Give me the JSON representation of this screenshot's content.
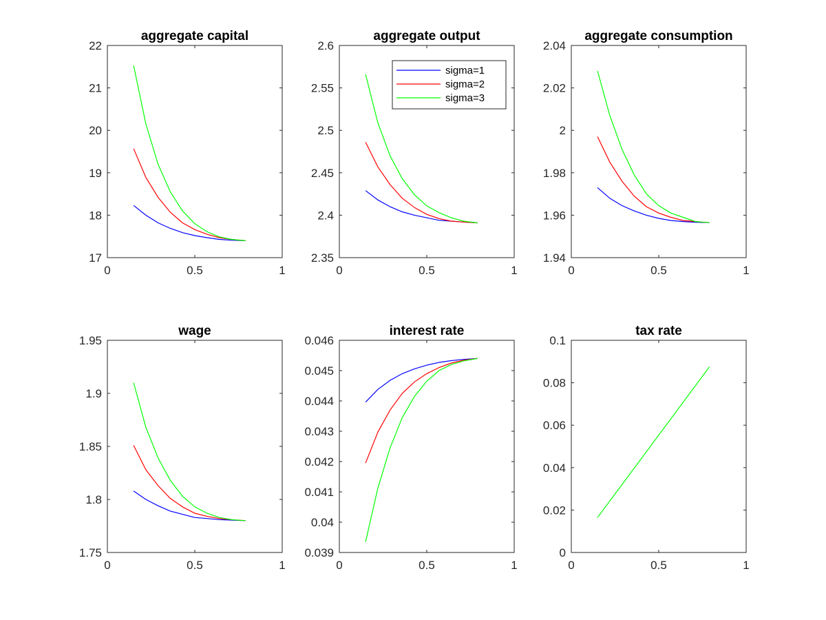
{
  "chart_data": [
    {
      "type": "line",
      "title": "aggregate capital",
      "xlim": [
        0,
        1
      ],
      "ylim": [
        17,
        22
      ],
      "xticks": [
        "0",
        "0.5",
        "1"
      ],
      "yticks": [
        "17",
        "18",
        "19",
        "20",
        "21",
        "22"
      ],
      "x": [
        0.15,
        0.22,
        0.29,
        0.36,
        0.43,
        0.5,
        0.57,
        0.64,
        0.71,
        0.79
      ],
      "series": [
        {
          "name": "sigma=1",
          "color": "#0000ff",
          "values": [
            18.23,
            18.0,
            17.82,
            17.69,
            17.59,
            17.52,
            17.47,
            17.43,
            17.41,
            17.4
          ]
        },
        {
          "name": "sigma=2",
          "color": "#ff0000",
          "values": [
            19.57,
            18.89,
            18.42,
            18.07,
            17.82,
            17.66,
            17.55,
            17.47,
            17.43,
            17.4
          ]
        },
        {
          "name": "sigma=3",
          "color": "#00ff00",
          "values": [
            21.53,
            20.15,
            19.2,
            18.55,
            18.1,
            17.8,
            17.61,
            17.49,
            17.43,
            17.4
          ]
        }
      ]
    },
    {
      "type": "line",
      "title": "aggregate output",
      "xlim": [
        0,
        1
      ],
      "ylim": [
        2.35,
        2.6
      ],
      "xticks": [
        "0",
        "0.5",
        "1"
      ],
      "yticks": [
        "2.35",
        "2.4",
        "2.45",
        "2.5",
        "2.55",
        "2.6"
      ],
      "x": [
        0.15,
        0.22,
        0.29,
        0.36,
        0.43,
        0.5,
        0.57,
        0.64,
        0.71,
        0.79
      ],
      "legend": {
        "position": "top-right",
        "entries": [
          "sigma=1",
          "sigma=2",
          "sigma=3"
        ]
      },
      "series": [
        {
          "name": "sigma=1",
          "color": "#0000ff",
          "values": [
            2.429,
            2.418,
            2.41,
            2.404,
            2.4,
            2.397,
            2.394,
            2.393,
            2.392,
            2.391
          ]
        },
        {
          "name": "sigma=2",
          "color": "#ff0000",
          "values": [
            2.486,
            2.457,
            2.436,
            2.42,
            2.409,
            2.401,
            2.396,
            2.393,
            2.392,
            2.391
          ]
        },
        {
          "name": "sigma=3",
          "color": "#00ff00",
          "values": [
            2.566,
            2.509,
            2.47,
            2.443,
            2.424,
            2.411,
            2.403,
            2.397,
            2.393,
            2.391
          ]
        }
      ]
    },
    {
      "type": "line",
      "title": "aggregate consumption",
      "xlim": [
        0,
        1
      ],
      "ylim": [
        1.94,
        2.04
      ],
      "xticks": [
        "0",
        "0.5",
        "1"
      ],
      "yticks": [
        "1.94",
        "1.96",
        "1.98",
        "2",
        "2.02",
        "2.04"
      ],
      "x": [
        0.15,
        0.22,
        0.29,
        0.36,
        0.43,
        0.5,
        0.57,
        0.64,
        0.71,
        0.79
      ],
      "series": [
        {
          "name": "sigma=1",
          "color": "#0000ff",
          "values": [
            1.973,
            1.968,
            1.9645,
            1.962,
            1.96,
            1.9585,
            1.9575,
            1.957,
            1.9567,
            1.9565
          ]
        },
        {
          "name": "sigma=2",
          "color": "#ff0000",
          "values": [
            1.997,
            1.985,
            1.976,
            1.969,
            1.964,
            1.961,
            1.959,
            1.9575,
            1.957,
            1.9565
          ]
        },
        {
          "name": "sigma=3",
          "color": "#00ff00",
          "values": [
            2.028,
            2.007,
            1.991,
            1.979,
            1.97,
            1.9645,
            1.961,
            1.959,
            1.957,
            1.9565
          ]
        }
      ]
    },
    {
      "type": "line",
      "title": "wage",
      "xlim": [
        0,
        1
      ],
      "ylim": [
        1.75,
        1.95
      ],
      "xticks": [
        "0",
        "0.5",
        "1"
      ],
      "yticks": [
        "1.75",
        "1.8",
        "1.85",
        "1.9",
        "1.95"
      ],
      "x": [
        0.15,
        0.22,
        0.29,
        0.36,
        0.43,
        0.5,
        0.57,
        0.64,
        0.71,
        0.79
      ],
      "series": [
        {
          "name": "sigma=1",
          "color": "#0000ff",
          "values": [
            1.808,
            1.8,
            1.794,
            1.789,
            1.786,
            1.783,
            1.782,
            1.781,
            1.7805,
            1.78
          ]
        },
        {
          "name": "sigma=2",
          "color": "#ff0000",
          "values": [
            1.851,
            1.828,
            1.813,
            1.801,
            1.793,
            1.787,
            1.784,
            1.782,
            1.781,
            1.78
          ]
        },
        {
          "name": "sigma=3",
          "color": "#00ff00",
          "values": [
            1.91,
            1.868,
            1.839,
            1.818,
            1.803,
            1.793,
            1.787,
            1.783,
            1.781,
            1.78
          ]
        }
      ]
    },
    {
      "type": "line",
      "title": "interest rate",
      "xlim": [
        0,
        1
      ],
      "ylim": [
        0.039,
        0.046
      ],
      "xticks": [
        "0",
        "0.5",
        "1"
      ],
      "yticks": [
        "0.039",
        "0.04",
        "0.041",
        "0.042",
        "0.043",
        "0.044",
        "0.045",
        "0.046"
      ],
      "x": [
        0.15,
        0.22,
        0.29,
        0.36,
        0.43,
        0.5,
        0.57,
        0.64,
        0.71,
        0.79
      ],
      "series": [
        {
          "name": "sigma=1",
          "color": "#0000ff",
          "values": [
            0.04396,
            0.04438,
            0.04468,
            0.0449,
            0.04506,
            0.04518,
            0.04527,
            0.04533,
            0.04537,
            0.0454
          ]
        },
        {
          "name": "sigma=2",
          "color": "#ff0000",
          "values": [
            0.04195,
            0.04297,
            0.0437,
            0.04425,
            0.04463,
            0.0449,
            0.0451,
            0.04525,
            0.04534,
            0.0454
          ]
        },
        {
          "name": "sigma=3",
          "color": "#00ff00",
          "values": [
            0.03935,
            0.04112,
            0.04245,
            0.04345,
            0.04415,
            0.04465,
            0.045,
            0.0452,
            0.04532,
            0.0454
          ]
        }
      ]
    },
    {
      "type": "line",
      "title": "tax rate",
      "xlim": [
        0,
        1
      ],
      "ylim": [
        0,
        0.1
      ],
      "xticks": [
        "0",
        "0.5",
        "1"
      ],
      "yticks": [
        "0",
        "0.02",
        "0.04",
        "0.06",
        "0.08",
        "0.1"
      ],
      "x": [
        0.15,
        0.79
      ],
      "series": [
        {
          "name": "sigma=3",
          "color": "#00ff00",
          "values": [
            0.0165,
            0.0875
          ]
        }
      ]
    }
  ]
}
